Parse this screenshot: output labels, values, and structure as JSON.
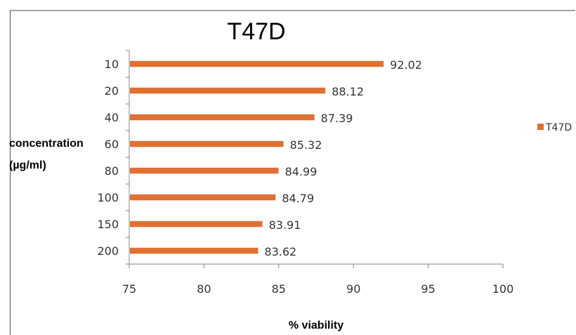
{
  "chart_data": {
    "type": "bar",
    "orientation": "horizontal",
    "title": "T47D",
    "xlabel": "% viability",
    "ylabel": [
      "concentration",
      "(µg/ml)"
    ],
    "categories": [
      "10",
      "20",
      "40",
      "60",
      "80",
      "100",
      "150",
      "200"
    ],
    "series": [
      {
        "name": "T47D",
        "values": [
          92.02,
          88.12,
          87.39,
          85.32,
          84.99,
          84.79,
          83.91,
          83.62
        ],
        "color": "#E07033"
      }
    ],
    "data_labels": [
      "92.02",
      "88.12",
      "87.39",
      "85.32",
      "84.99",
      "84.79",
      "83.91",
      "83.62"
    ],
    "xlim": [
      75,
      100
    ],
    "xticks": [
      75,
      80,
      85,
      90,
      95,
      100
    ],
    "grid": false,
    "legend_position": "right",
    "axis_color": "#868686",
    "frame_color": "#4d4d4d"
  }
}
